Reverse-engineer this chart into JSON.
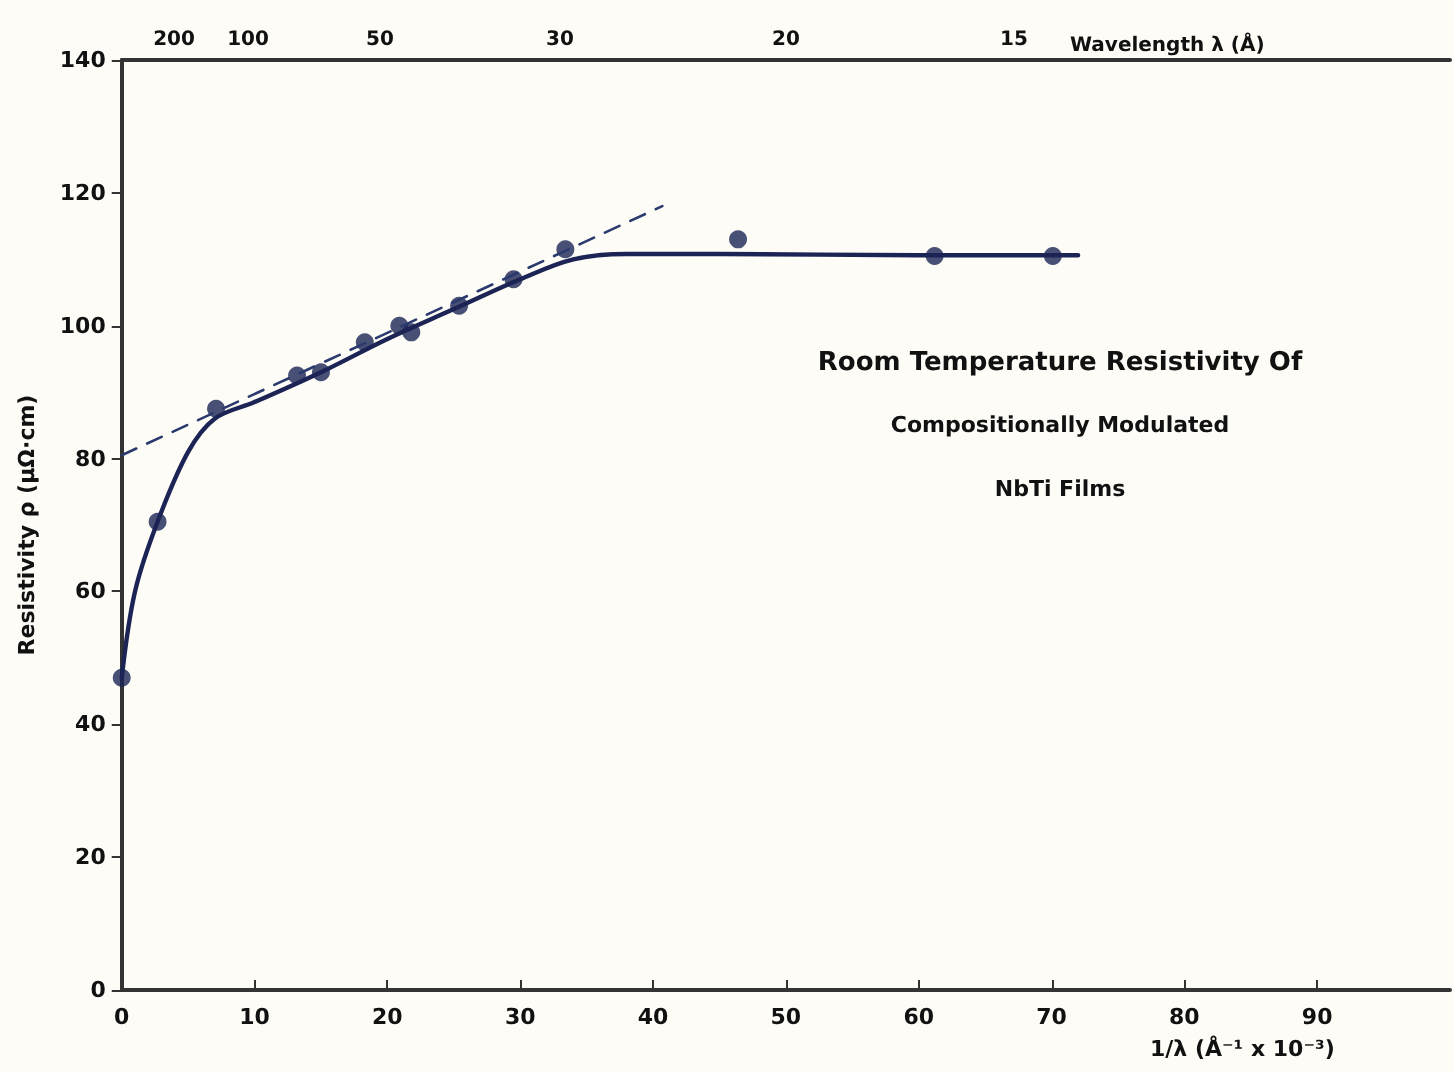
{
  "chart_data": {
    "type": "scatter",
    "xlabel": "1/λ (Å⁻¹ x 10⁻³)",
    "ylabel": "Resistivity ρ (μΩ·cm)",
    "x2label": "Wavelength λ (Å)",
    "annotations": [
      "Room Temperature Resistivity Of",
      "Compositionally Modulated",
      "NbTi Films",
      "200",
      "100",
      "50",
      "30",
      "20",
      "15"
    ],
    "series": [
      {
        "marker": "circle",
        "color": "#1c2455",
        "x": [
          0,
          2.7,
          7.1,
          13.2,
          15,
          18.3,
          20.9,
          21.8,
          25.4,
          29.5,
          33.4,
          46.4,
          61.2,
          70.1
        ],
        "values": [
          47,
          70.5,
          87.5,
          92.5,
          93,
          97.5,
          100,
          99,
          103,
          107,
          111.5,
          113,
          110.5,
          110.5
        ]
      },
      {
        "type": "line",
        "marker": "none",
        "line_style": "solid",
        "color": "#1c2455",
        "x": [
          0,
          1,
          2.7,
          5,
          7,
          10,
          15,
          20,
          25,
          30,
          34,
          38,
          45,
          60,
          72
        ],
        "values": [
          47,
          60,
          70.5,
          81,
          86,
          88.5,
          93,
          98,
          102.5,
          107,
          110,
          110.8,
          110.8,
          110.6,
          110.6
        ]
      },
      {
        "type": "line",
        "marker": "none",
        "line_style": "dashed",
        "color": "#2a3a6e",
        "x": [
          0,
          40.7
        ],
        "values": [
          80.5,
          118
        ]
      }
    ],
    "xlim": [
      0,
      100
    ],
    "xticks": [
      0,
      10,
      20,
      30,
      40,
      50,
      60,
      70,
      80,
      90
    ],
    "ylim": [
      0,
      140
    ],
    "yticks": [
      0,
      20,
      40,
      60,
      80,
      100,
      120,
      140
    ],
    "grid": false
  }
}
